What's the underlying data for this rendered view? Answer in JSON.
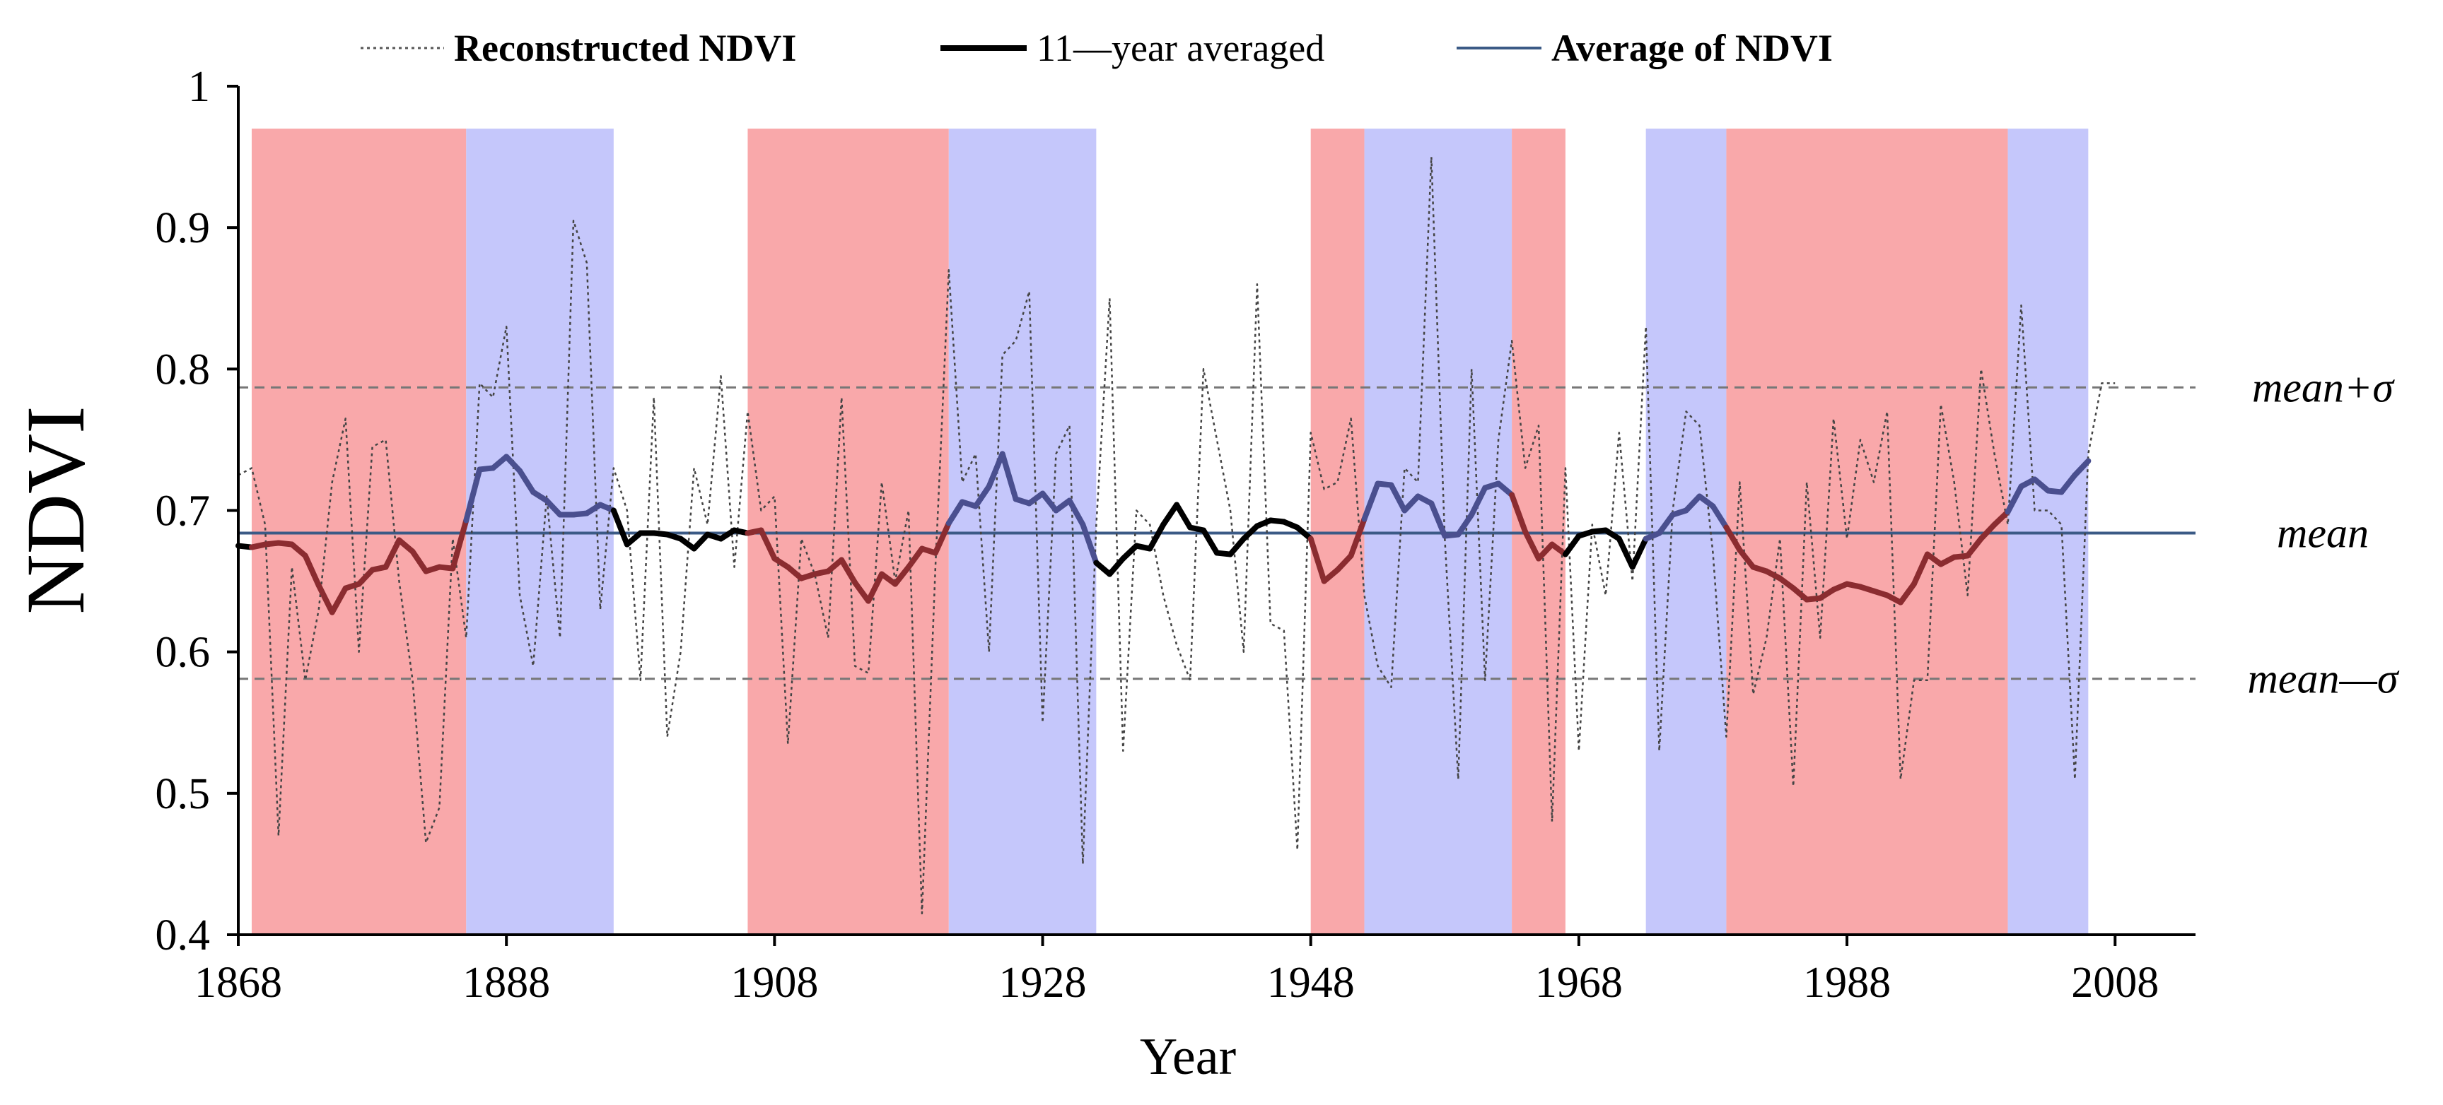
{
  "chart_data": {
    "type": "line",
    "xlabel": "Year",
    "ylabel": "NDVI",
    "xlim": [
      1868,
      2014
    ],
    "ylim": [
      0.4,
      1.0
    ],
    "x_ticks": [
      1868,
      1888,
      1908,
      1928,
      1948,
      1968,
      1988,
      2008
    ],
    "x_tick_labels": [
      "1868",
      "1888",
      "1908",
      "1928",
      "1948",
      "1968",
      "1988",
      "2008"
    ],
    "y_ticks": [
      0.4,
      0.5,
      0.6,
      0.7,
      0.8,
      0.9,
      1.0
    ],
    "y_tick_labels": [
      "0.4",
      "0.5",
      "0.6",
      "0.7",
      "0.8",
      "0.9",
      "1"
    ],
    "legend": {
      "placement": "top",
      "items": [
        {
          "label": "Reconstructed NDVI",
          "style": "dotted",
          "color": "#555555"
        },
        {
          "label": "11—year averaged",
          "style": "solid-thick",
          "color": "#000000"
        },
        {
          "label": "Average of NDVI",
          "style": "solid",
          "color": "#3b5a86"
        }
      ]
    },
    "colors": {
      "dry": "#f9a8aa",
      "wet": "#c5c7fb",
      "mean_line": "#3b5a86",
      "dry_line": "#8b2c30",
      "wet_line": "#4a4f8f",
      "neutral_line": "#000000",
      "ref_line": "#777777",
      "raw_line": "#444444"
    },
    "reference_lines": [
      {
        "name": "mean+sigma",
        "label": "mean+σ",
        "value": 0.787,
        "style": "dashed"
      },
      {
        "name": "mean",
        "label": "mean",
        "value": 0.684,
        "style": "solid"
      },
      {
        "name": "mean-sigma",
        "label": "mean—σ",
        "value": 0.581,
        "style": "dashed"
      }
    ],
    "periods": [
      {
        "start": 1869,
        "end": 1885,
        "type": "dry"
      },
      {
        "start": 1885,
        "end": 1896,
        "type": "wet"
      },
      {
        "start": 1906,
        "end": 1921,
        "type": "dry"
      },
      {
        "start": 1921,
        "end": 1932,
        "type": "wet"
      },
      {
        "start": 1948,
        "end": 1952,
        "type": "dry"
      },
      {
        "start": 1952,
        "end": 1963,
        "type": "wet"
      },
      {
        "start": 1963,
        "end": 1967,
        "type": "dry"
      },
      {
        "start": 1973,
        "end": 1979,
        "type": "wet"
      },
      {
        "start": 1979,
        "end": 2000,
        "type": "dry"
      },
      {
        "start": 2000,
        "end": 2006,
        "type": "wet"
      }
    ],
    "series": [
      {
        "name": "Reconstructed NDVI",
        "start_year": 1868,
        "values": [
          0.725,
          0.73,
          0.69,
          0.47,
          0.66,
          0.58,
          0.63,
          0.72,
          0.765,
          0.6,
          0.745,
          0.75,
          0.65,
          0.58,
          0.465,
          0.49,
          0.68,
          0.61,
          0.79,
          0.78,
          0.83,
          0.64,
          0.59,
          0.71,
          0.61,
          0.905,
          0.875,
          0.63,
          0.73,
          0.7,
          0.58,
          0.78,
          0.54,
          0.6,
          0.73,
          0.69,
          0.795,
          0.66,
          0.77,
          0.7,
          0.71,
          0.535,
          0.68,
          0.655,
          0.61,
          0.78,
          0.59,
          0.585,
          0.72,
          0.65,
          0.7,
          0.415,
          0.66,
          0.87,
          0.72,
          0.74,
          0.6,
          0.81,
          0.82,
          0.855,
          0.55,
          0.74,
          0.76,
          0.45,
          0.69,
          0.85,
          0.53,
          0.7,
          0.69,
          0.64,
          0.605,
          0.58,
          0.8,
          0.75,
          0.7,
          0.6,
          0.86,
          0.62,
          0.615,
          0.46,
          0.755,
          0.715,
          0.72,
          0.765,
          0.64,
          0.59,
          0.575,
          0.73,
          0.72,
          0.95,
          0.68,
          0.51,
          0.8,
          0.58,
          0.75,
          0.82,
          0.73,
          0.76,
          0.48,
          0.73,
          0.53,
          0.69,
          0.64,
          0.755,
          0.65,
          0.83,
          0.53,
          0.7,
          0.77,
          0.76,
          0.67,
          0.54,
          0.72,
          0.57,
          0.61,
          0.68,
          0.505,
          0.72,
          0.61,
          0.765,
          0.68,
          0.75,
          0.72,
          0.77,
          0.51,
          0.58,
          0.58,
          0.775,
          0.72,
          0.64,
          0.8,
          0.74,
          0.69,
          0.845,
          0.7,
          0.7,
          0.69,
          0.51,
          0.74,
          0.79,
          0.79
        ]
      },
      {
        "name": "11—year averaged",
        "start_year": 1868,
        "values": [
          0.675,
          0.674,
          0.676,
          0.677,
          0.676,
          0.668,
          0.647,
          0.628,
          0.645,
          0.648,
          0.658,
          0.66,
          0.679,
          0.671,
          0.657,
          0.66,
          0.659,
          0.693,
          0.729,
          0.73,
          0.738,
          0.728,
          0.713,
          0.707,
          0.697,
          0.697,
          0.698,
          0.704,
          0.7,
          0.676,
          0.684,
          0.684,
          0.683,
          0.68,
          0.673,
          0.683,
          0.68,
          0.686,
          0.684,
          0.686,
          0.666,
          0.66,
          0.652,
          0.655,
          0.657,
          0.665,
          0.649,
          0.636,
          0.655,
          0.648,
          0.66,
          0.673,
          0.67,
          0.691,
          0.706,
          0.703,
          0.717,
          0.74,
          0.708,
          0.705,
          0.712,
          0.7,
          0.707,
          0.69,
          0.663,
          0.655,
          0.666,
          0.675,
          0.673,
          0.69,
          0.704,
          0.688,
          0.686,
          0.67,
          0.669,
          0.68,
          0.689,
          0.693,
          0.692,
          0.688,
          0.68,
          0.65,
          0.658,
          0.668,
          0.694,
          0.719,
          0.718,
          0.7,
          0.71,
          0.705,
          0.682,
          0.683,
          0.697,
          0.716,
          0.719,
          0.711,
          0.685,
          0.666,
          0.676,
          0.669,
          0.682,
          0.685,
          0.686,
          0.68,
          0.66,
          0.68,
          0.684,
          0.697,
          0.7,
          0.71,
          0.703,
          0.688,
          0.672,
          0.66,
          0.657,
          0.652,
          0.645,
          0.637,
          0.638,
          0.644,
          0.648,
          0.646,
          0.643,
          0.64,
          0.635,
          0.648,
          0.669,
          0.662,
          0.667,
          0.668,
          0.68,
          0.69,
          0.699,
          0.717,
          0.722,
          0.714,
          0.713,
          0.725,
          0.735
        ]
      }
    ]
  }
}
